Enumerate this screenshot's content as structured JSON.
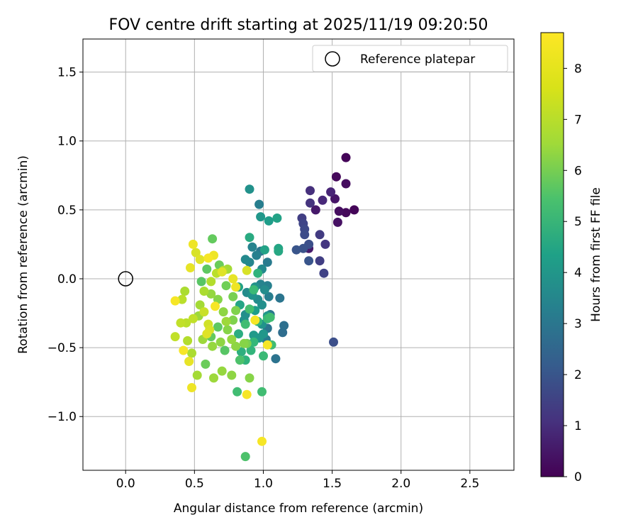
{
  "chart_data": {
    "type": "scatter",
    "title": "FOV centre drift starting at 2025/11/19 09:20:50",
    "xlabel": "Angular distance from reference (arcmin)",
    "ylabel": "Rotation from reference (arcmin)",
    "xlim": [
      -0.31,
      2.82
    ],
    "ylim": [
      -1.39,
      1.74
    ],
    "xticks": [
      0.0,
      0.5,
      1.0,
      1.5,
      2.0,
      2.5
    ],
    "xtick_labels": [
      "0.0",
      "0.5",
      "1.0",
      "1.5",
      "2.0",
      "2.5"
    ],
    "yticks": [
      -1.0,
      -0.5,
      0.0,
      0.5,
      1.0,
      1.5
    ],
    "ytick_labels": [
      "−1.0",
      "−0.5",
      "0.0",
      "0.5",
      "1.0",
      "1.5"
    ],
    "grid": true,
    "colormap": "viridis",
    "colorbar": {
      "label": "Hours from first FF file",
      "range": [
        0,
        8.7
      ],
      "ticks": [
        0,
        1,
        2,
        3,
        4,
        5,
        6,
        7,
        8
      ],
      "tick_labels": [
        "0",
        "1",
        "2",
        "3",
        "4",
        "5",
        "6",
        "7",
        "8"
      ]
    },
    "legend": {
      "position": "top-right",
      "entries": [
        {
          "label": "Reference platepar",
          "marker": "open-circle"
        }
      ]
    },
    "reference_point": {
      "x": 0.0,
      "y": 0.0,
      "label": "Reference platepar"
    },
    "series": [
      {
        "name": "FOV centre",
        "columns": [
          "x",
          "y",
          "hours"
        ],
        "points": [
          [
            1.6,
            0.88,
            0.1
          ],
          [
            1.53,
            0.74,
            0.2
          ],
          [
            1.6,
            0.69,
            0.3
          ],
          [
            1.66,
            0.5,
            0.1
          ],
          [
            1.6,
            0.48,
            0.2
          ],
          [
            1.55,
            0.49,
            0.3
          ],
          [
            1.54,
            0.41,
            0.4
          ],
          [
            1.52,
            0.58,
            0.5
          ],
          [
            1.38,
            0.5,
            0.6
          ],
          [
            1.33,
            0.22,
            0.6
          ],
          [
            1.49,
            0.63,
            0.9
          ],
          [
            1.43,
            0.57,
            1.0
          ],
          [
            1.34,
            0.64,
            1.2
          ],
          [
            1.34,
            0.55,
            1.3
          ],
          [
            1.45,
            0.25,
            1.4
          ],
          [
            1.41,
            0.32,
            1.5
          ],
          [
            1.41,
            0.13,
            1.6
          ],
          [
            1.44,
            0.04,
            1.7
          ],
          [
            1.28,
            0.44,
            1.6
          ],
          [
            1.29,
            0.4,
            1.8
          ],
          [
            1.3,
            0.36,
            1.9
          ],
          [
            1.3,
            0.32,
            2.0
          ],
          [
            1.33,
            0.25,
            2.1
          ],
          [
            1.29,
            0.22,
            2.2
          ],
          [
            1.24,
            0.21,
            2.3
          ],
          [
            1.33,
            0.13,
            2.3
          ],
          [
            1.51,
            -0.46,
            2.1
          ],
          [
            1.15,
            -0.34,
            3.2
          ],
          [
            1.14,
            -0.39,
            3.1
          ],
          [
            1.12,
            -0.14,
            3.4
          ],
          [
            1.09,
            -0.58,
            3.3
          ],
          [
            1.05,
            -0.26,
            3.5
          ],
          [
            1.03,
            -0.36,
            3.4
          ],
          [
            1.02,
            -0.44,
            3.6
          ],
          [
            1.03,
            -0.05,
            3.8
          ],
          [
            1.04,
            -0.13,
            3.7
          ],
          [
            1.03,
            0.12,
            3.6
          ],
          [
            0.98,
            0.2,
            3.5
          ],
          [
            0.98,
            -0.04,
            3.9
          ],
          [
            0.97,
            0.54,
            3.7
          ],
          [
            0.95,
            0.17,
            3.8
          ],
          [
            0.92,
            0.23,
            3.9
          ],
          [
            0.9,
            0.12,
            4.0
          ],
          [
            0.87,
            0.14,
            4.1
          ],
          [
            0.88,
            -0.1,
            4.2
          ],
          [
            0.87,
            -0.26,
            4.3
          ],
          [
            0.86,
            -0.3,
            4.4
          ],
          [
            0.92,
            -0.12,
            4.5
          ],
          [
            0.94,
            -0.06,
            4.4
          ],
          [
            0.96,
            -0.15,
            4.2
          ],
          [
            0.99,
            -0.19,
            4.3
          ],
          [
            0.99,
            -0.33,
            4.5
          ],
          [
            1.0,
            -0.4,
            4.6
          ],
          [
            0.97,
            -0.43,
            4.6
          ],
          [
            0.93,
            -0.41,
            4.7
          ],
          [
            0.94,
            -0.23,
            4.8
          ],
          [
            0.99,
            0.07,
            4.1
          ],
          [
            1.01,
            -0.08,
            4.2
          ],
          [
            1.03,
            -0.27,
            4.6
          ],
          [
            0.9,
            0.65,
            4.4
          ],
          [
            0.98,
            0.45,
            4.6
          ],
          [
            1.04,
            0.42,
            4.8
          ],
          [
            1.1,
            0.44,
            5.0
          ],
          [
            1.11,
            0.22,
            5.1
          ],
          [
            1.11,
            0.2,
            5.2
          ],
          [
            1.01,
            0.21,
            5.0
          ],
          [
            0.9,
            0.3,
            5.3
          ],
          [
            0.82,
            -0.06,
            5.0
          ],
          [
            0.83,
            -0.19,
            5.1
          ],
          [
            0.82,
            -0.4,
            5.4
          ],
          [
            0.84,
            -0.53,
            5.5
          ],
          [
            0.87,
            -0.59,
            5.6
          ],
          [
            0.91,
            -0.52,
            5.7
          ],
          [
            0.93,
            -0.46,
            5.8
          ],
          [
            0.96,
            -0.31,
            5.7
          ],
          [
            1.03,
            -0.29,
            5.9
          ],
          [
            1.05,
            -0.28,
            6.0
          ],
          [
            1.06,
            -0.48,
            6.0
          ],
          [
            1.0,
            -0.56,
            5.9
          ],
          [
            0.96,
            0.04,
            5.6
          ],
          [
            0.93,
            -0.08,
            5.9
          ],
          [
            0.9,
            -0.22,
            6.1
          ],
          [
            0.87,
            -0.33,
            6.0
          ],
          [
            0.99,
            -0.82,
            6.0
          ],
          [
            0.81,
            -0.82,
            6.0
          ],
          [
            0.87,
            -1.29,
            6.2
          ],
          [
            0.83,
            -0.59,
            6.2
          ],
          [
            0.72,
            -0.52,
            6.4
          ],
          [
            0.67,
            -0.35,
            6.5
          ],
          [
            0.62,
            -0.42,
            6.6
          ],
          [
            0.58,
            -0.62,
            6.7
          ],
          [
            0.55,
            -0.02,
            6.4
          ],
          [
            0.59,
            0.07,
            6.5
          ],
          [
            0.63,
            0.29,
            6.6
          ],
          [
            0.68,
            0.1,
            6.7
          ],
          [
            0.73,
            -0.05,
            6.8
          ],
          [
            0.78,
            -0.13,
            6.9
          ],
          [
            0.8,
            -0.23,
            7.0
          ],
          [
            0.78,
            -0.3,
            7.0
          ],
          [
            0.74,
            -0.37,
            7.1
          ],
          [
            0.69,
            -0.46,
            7.2
          ],
          [
            0.63,
            -0.49,
            7.3
          ],
          [
            0.56,
            -0.44,
            7.4
          ],
          [
            0.53,
            -0.27,
            7.4
          ],
          [
            0.54,
            -0.19,
            7.5
          ],
          [
            0.57,
            -0.09,
            7.6
          ],
          [
            0.62,
            -0.02,
            7.7
          ],
          [
            0.66,
            0.04,
            7.8
          ],
          [
            0.71,
            0.06,
            7.6
          ],
          [
            0.74,
            0.07,
            7.5
          ],
          [
            0.62,
            -0.11,
            7.3
          ],
          [
            0.67,
            -0.15,
            7.1
          ],
          [
            0.71,
            -0.24,
            7.2
          ],
          [
            0.73,
            -0.31,
            7.4
          ],
          [
            0.77,
            -0.44,
            7.3
          ],
          [
            0.8,
            -0.49,
            7.2
          ],
          [
            0.86,
            -0.47,
            7.1
          ],
          [
            0.88,
            -0.47,
            6.9
          ],
          [
            0.9,
            -0.72,
            7.1
          ],
          [
            0.77,
            -0.7,
            7.2
          ],
          [
            0.7,
            -0.67,
            7.3
          ],
          [
            0.64,
            -0.72,
            7.4
          ],
          [
            0.52,
            -0.7,
            7.5
          ],
          [
            0.48,
            -0.54,
            7.6
          ],
          [
            0.45,
            -0.45,
            7.7
          ],
          [
            0.44,
            -0.32,
            7.8
          ],
          [
            0.4,
            -0.32,
            7.9
          ],
          [
            0.41,
            -0.15,
            7.8
          ],
          [
            0.43,
            -0.09,
            7.6
          ],
          [
            0.36,
            -0.42,
            7.9
          ],
          [
            0.49,
            -0.29,
            7.9
          ],
          [
            0.57,
            -0.24,
            8.0
          ],
          [
            0.6,
            -0.33,
            8.1
          ],
          [
            0.61,
            -0.37,
            8.2
          ],
          [
            0.59,
            -0.4,
            8.3
          ],
          [
            0.46,
            -0.6,
            8.4
          ],
          [
            0.48,
            -0.79,
            8.5
          ],
          [
            0.42,
            -0.52,
            8.6
          ],
          [
            0.36,
            -0.16,
            8.6
          ],
          [
            0.51,
            0.19,
            8.2
          ],
          [
            0.54,
            0.14,
            8.3
          ],
          [
            0.49,
            0.25,
            8.5
          ],
          [
            0.47,
            0.08,
            8.4
          ],
          [
            0.6,
            0.15,
            8.6
          ],
          [
            0.64,
            0.17,
            8.5
          ],
          [
            0.7,
            0.05,
            8.3
          ],
          [
            0.78,
            0.0,
            8.4
          ],
          [
            0.88,
            0.06,
            8.2
          ],
          [
            0.8,
            -0.06,
            8.5
          ],
          [
            0.94,
            -0.3,
            8.6
          ],
          [
            0.88,
            -0.84,
            8.6
          ],
          [
            1.03,
            -0.48,
            8.6
          ],
          [
            0.99,
            -1.18,
            8.6
          ],
          [
            0.65,
            -0.2,
            8.6
          ]
        ]
      }
    ]
  }
}
